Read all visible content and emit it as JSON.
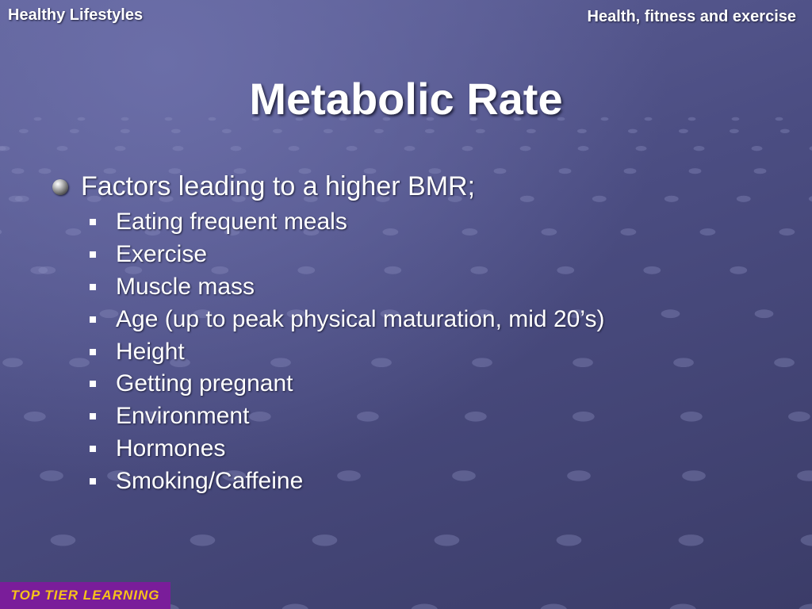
{
  "header": {
    "left": "Healthy Lifestyles",
    "right": "Health, fitness and exercise"
  },
  "slide": {
    "title": "Metabolic Rate",
    "main_bullet": "Factors leading to a higher BMR;",
    "sub_items": [
      "Eating frequent meals",
      "Exercise",
      "Muscle mass",
      "Age (up to peak physical maturation, mid 20’s)",
      "Height",
      "Getting pregnant",
      "Environment",
      "Hormones",
      "Smoking/Caffeine"
    ]
  },
  "logo": {
    "text": "TOP TIER LEARNING"
  }
}
